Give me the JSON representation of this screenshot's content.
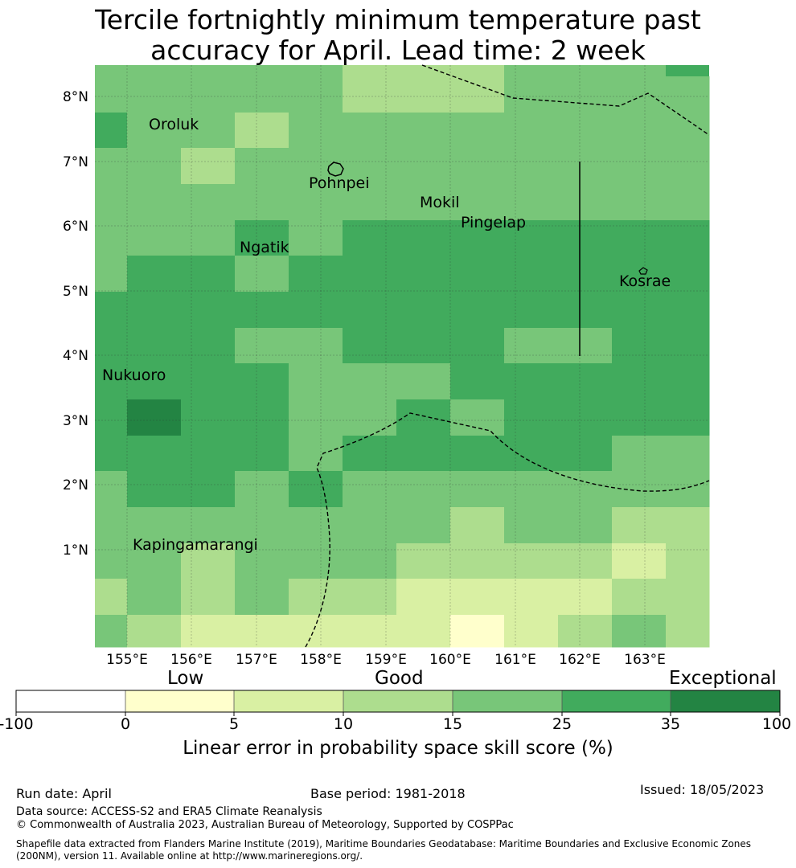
{
  "title_line1": "Tercile fortnightly minimum temperature past",
  "title_line2": "accuracy for April. Lead time: 2 week",
  "colors": {
    "c0": "#ffffff",
    "c1": "#ffffcc",
    "c2": "#d9f0a3",
    "c3": "#addd8e",
    "c4": "#78c679",
    "c5": "#41ab5d",
    "c6": "#238443"
  },
  "grid": {
    "rows": [
      [
        4,
        4,
        4,
        4,
        4,
        3,
        3,
        3,
        4,
        4,
        4,
        5
      ],
      [
        5,
        4,
        4,
        3,
        4,
        4,
        4,
        4,
        4,
        4,
        4,
        4
      ],
      [
        4,
        4,
        3,
        4,
        4,
        4,
        4,
        4,
        4,
        4,
        4,
        4
      ],
      [
        4,
        4,
        4,
        4,
        4,
        4,
        4,
        4,
        4,
        4,
        4,
        4
      ],
      [
        4,
        4,
        4,
        5,
        4,
        5,
        5,
        5,
        5,
        5,
        5,
        5
      ],
      [
        4,
        5,
        5,
        4,
        5,
        5,
        5,
        5,
        5,
        5,
        5,
        5
      ],
      [
        5,
        5,
        5,
        5,
        5,
        5,
        5,
        5,
        5,
        5,
        5,
        5
      ],
      [
        5,
        5,
        5,
        4,
        4,
        5,
        5,
        5,
        4,
        4,
        5,
        5
      ],
      [
        5,
        5,
        5,
        5,
        4,
        4,
        4,
        5,
        5,
        5,
        5,
        5
      ],
      [
        5,
        6,
        5,
        5,
        4,
        4,
        5,
        4,
        5,
        5,
        5,
        5
      ],
      [
        5,
        5,
        5,
        5,
        4,
        5,
        5,
        5,
        5,
        5,
        4,
        4
      ],
      [
        4,
        5,
        5,
        4,
        5,
        4,
        4,
        4,
        4,
        4,
        4,
        4
      ],
      [
        4,
        4,
        4,
        4,
        4,
        4,
        4,
        3,
        4,
        4,
        3,
        3
      ],
      [
        4,
        4,
        3,
        4,
        4,
        4,
        3,
        3,
        3,
        3,
        2,
        3
      ],
      [
        3,
        4,
        3,
        4,
        3,
        3,
        2,
        2,
        2,
        2,
        3,
        3
      ],
      [
        4,
        3,
        2,
        2,
        2,
        2,
        2,
        1,
        2,
        3,
        4,
        3
      ]
    ]
  },
  "lat_labels": [
    "8°N",
    "7°N",
    "6°N",
    "5°N",
    "4°N",
    "3°N",
    "2°N",
    "1°N"
  ],
  "lon_labels": [
    "155°E",
    "156°E",
    "157°E",
    "158°E",
    "159°E",
    "160°E",
    "161°E",
    "162°E",
    "163°E"
  ],
  "places": {
    "oroluk": "Oroluk",
    "pohnpei": "Pohnpei",
    "mokil": "Mokil",
    "pingelap": "Pingelap",
    "ngatik": "Ngatik",
    "kosrae": "Kosrae",
    "nukuoro": "Nukuoro",
    "kapingamarangi": "Kapingamarangi"
  },
  "colorbar": {
    "words": {
      "low": "Low",
      "good": "Good",
      "exceptional": "Exceptional"
    },
    "ticks": [
      "-100",
      "0",
      "5",
      "10",
      "15",
      "25",
      "35",
      "100"
    ],
    "label": "Linear error in probability space skill score (%)"
  },
  "footer": {
    "run_date": "Run date: April",
    "base_period": "Base period: 1981-2018",
    "issued": "Issued: 18/05/2023",
    "data_source": "Data source: ACCESS-S2 and ERA5 Climate Reanalysis",
    "copyright": "© Commonwealth of Australia 2023, Australian Bureau of Meteorology, Supported by COSPPac",
    "shapefile": "Shapefile data extracted from Flanders Marine Institute (2019), Maritime Boundaries Geodatabase: Maritime Boundaries and Exclusive Economic Zones (200NM), version 11. Available online at http://www.marineregions.org/."
  }
}
